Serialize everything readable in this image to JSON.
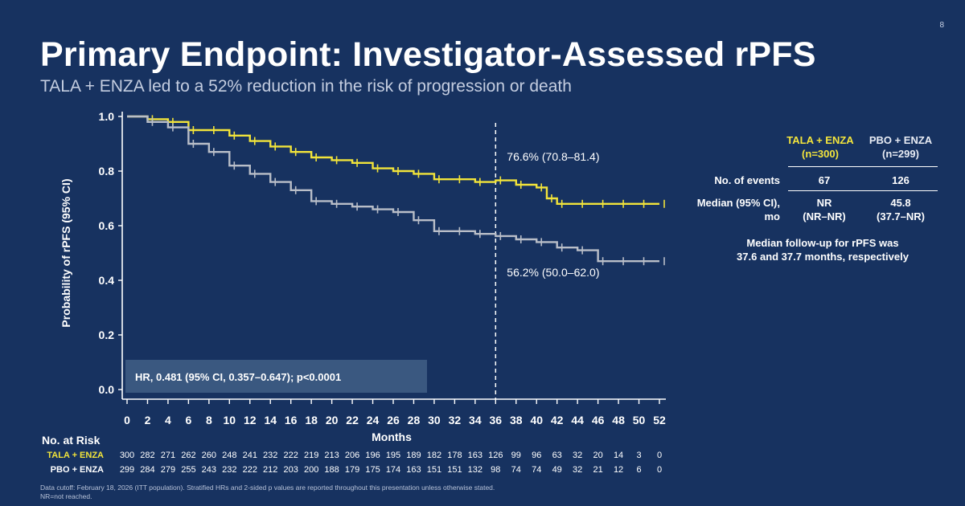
{
  "slide_number": "8",
  "title": "Primary Endpoint: Investigator-Assessed rPFS",
  "subtitle": "TALA + ENZA led to a 52% reduction in the risk of progression or death",
  "colors": {
    "background": "#173260",
    "tala_enza": "#f2e43a",
    "pbo_enza": "#b9bec8",
    "hr_box": "#3a5880"
  },
  "chart_data": {
    "type": "line",
    "ylabel": "Probability of rPFS (95% CI)",
    "xlabel": "Months",
    "xlim": [
      0,
      52
    ],
    "ylim": [
      0,
      1
    ],
    "x_ticks": [
      0,
      2,
      4,
      6,
      8,
      10,
      12,
      14,
      16,
      18,
      20,
      22,
      24,
      26,
      28,
      30,
      32,
      34,
      36,
      38,
      40,
      42,
      44,
      46,
      48,
      50,
      52
    ],
    "y_ticks": [
      "0.0",
      "0.2",
      "0.4",
      "0.6",
      "0.8",
      "1.0"
    ],
    "reference_line_x": 36,
    "series": [
      {
        "name": "TALA + ENZA",
        "points": [
          [
            0,
            1.0
          ],
          [
            2,
            0.99
          ],
          [
            4,
            0.98
          ],
          [
            6,
            0.95
          ],
          [
            8,
            0.95
          ],
          [
            10,
            0.93
          ],
          [
            12,
            0.91
          ],
          [
            14,
            0.89
          ],
          [
            16,
            0.87
          ],
          [
            18,
            0.85
          ],
          [
            20,
            0.84
          ],
          [
            22,
            0.83
          ],
          [
            24,
            0.81
          ],
          [
            26,
            0.8
          ],
          [
            28,
            0.79
          ],
          [
            30,
            0.77
          ],
          [
            32,
            0.77
          ],
          [
            34,
            0.76
          ],
          [
            36,
            0.766
          ],
          [
            38,
            0.75
          ],
          [
            40,
            0.74
          ],
          [
            41,
            0.7
          ],
          [
            42,
            0.68
          ],
          [
            44,
            0.68
          ],
          [
            46,
            0.68
          ],
          [
            48,
            0.68
          ],
          [
            50,
            0.68
          ],
          [
            52,
            0.68
          ]
        ],
        "annotation": "76.6% (70.8–81.4)"
      },
      {
        "name": "PBO + ENZA",
        "points": [
          [
            0,
            1.0
          ],
          [
            2,
            0.98
          ],
          [
            4,
            0.96
          ],
          [
            6,
            0.9
          ],
          [
            8,
            0.87
          ],
          [
            10,
            0.82
          ],
          [
            12,
            0.79
          ],
          [
            14,
            0.76
          ],
          [
            16,
            0.73
          ],
          [
            18,
            0.69
          ],
          [
            20,
            0.68
          ],
          [
            22,
            0.67
          ],
          [
            24,
            0.66
          ],
          [
            26,
            0.65
          ],
          [
            28,
            0.62
          ],
          [
            30,
            0.58
          ],
          [
            32,
            0.58
          ],
          [
            34,
            0.57
          ],
          [
            36,
            0.562
          ],
          [
            38,
            0.55
          ],
          [
            40,
            0.54
          ],
          [
            42,
            0.52
          ],
          [
            44,
            0.51
          ],
          [
            46,
            0.47
          ],
          [
            48,
            0.47
          ],
          [
            50,
            0.47
          ],
          [
            52,
            0.47
          ]
        ],
        "annotation": "56.2% (50.0–62.0)"
      }
    ],
    "hr_text": "HR, 0.481 (95% CI, 0.357–0.647); p<0.0001"
  },
  "risk_table": {
    "title": "No. at Risk",
    "rows": [
      {
        "label": "TALA + ENZA",
        "values": [
          "300",
          "282",
          "271",
          "262",
          "260",
          "248",
          "241",
          "232",
          "222",
          "219",
          "213",
          "206",
          "196",
          "195",
          "189",
          "182",
          "178",
          "163",
          "126",
          "99",
          "96",
          "63",
          "32",
          "20",
          "14",
          "3",
          "0"
        ]
      },
      {
        "label": "PBO + ENZA",
        "values": [
          "299",
          "284",
          "279",
          "255",
          "243",
          "232",
          "222",
          "212",
          "203",
          "200",
          "188",
          "179",
          "175",
          "174",
          "163",
          "151",
          "151",
          "132",
          "98",
          "74",
          "74",
          "49",
          "32",
          "21",
          "12",
          "6",
          "0"
        ]
      }
    ]
  },
  "summary_table": {
    "col1_name": "TALA + ENZA",
    "col1_n": "(n=300)",
    "col2_name": "PBO + ENZA",
    "col2_n": "(n=299)",
    "events_label": "No. of events",
    "events_col1": "67",
    "events_col2": "126",
    "median_label_1": "Median (95% CI),",
    "median_label_2": "mo",
    "median_col1": "NR",
    "median_col1_ci": "(NR–NR)",
    "median_col2": "45.8",
    "median_col2_ci": "(37.7–NR)",
    "followup_1": "Median follow-up for rPFS was",
    "followup_2": "37.6 and 37.7 months, respectively"
  },
  "footnote": {
    "line1": "Data cutoff: February 18, 2026 (ITT population). Stratified HRs and 2-sided p values are reported throughout this presentation unless otherwise stated.",
    "line2": "NR=not reached."
  }
}
